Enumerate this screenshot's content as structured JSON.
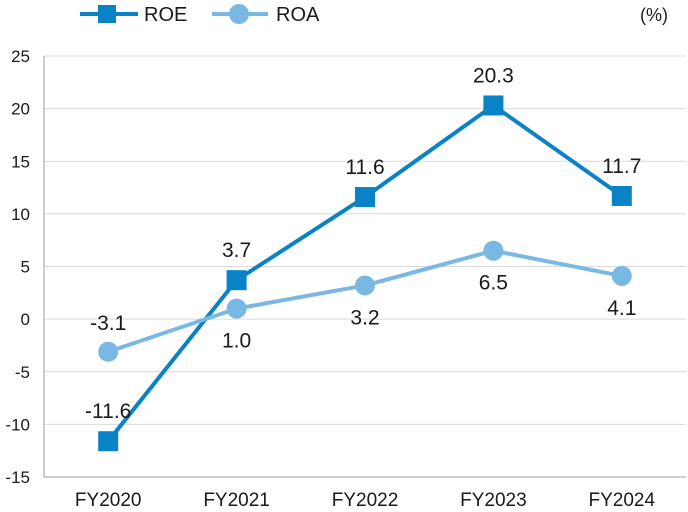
{
  "chart_data": {
    "type": "line",
    "categories": [
      "FY2020",
      "FY2021",
      "FY2022",
      "FY2023",
      "FY2024"
    ],
    "series": [
      {
        "name": "ROE",
        "values": [
          -11.6,
          3.7,
          11.6,
          20.3,
          11.7
        ],
        "labels": [
          "-11.6",
          "3.7",
          "11.6",
          "20.3",
          "11.7"
        ],
        "color": "#0a82c6",
        "marker": "square"
      },
      {
        "name": "ROA",
        "values": [
          -3.1,
          1.0,
          3.2,
          6.5,
          4.1
        ],
        "labels": [
          "-3.1",
          "1.0",
          "3.2",
          "6.5",
          "4.1"
        ],
        "color": "#7ab8e4",
        "marker": "circle"
      }
    ],
    "unit": "(%)",
    "ylim": [
      -15,
      25
    ],
    "yticks": [
      -15,
      -10,
      -5,
      0,
      5,
      10,
      15,
      20,
      25
    ],
    "ytick_labels": [
      "-15",
      "-10",
      "-5",
      "0",
      "5",
      "10",
      "15",
      "20",
      "25"
    ],
    "grid": true,
    "legend_position": "top-left",
    "gridline_color": "#d9d9d9",
    "axis_color": "#9e9e9e"
  }
}
